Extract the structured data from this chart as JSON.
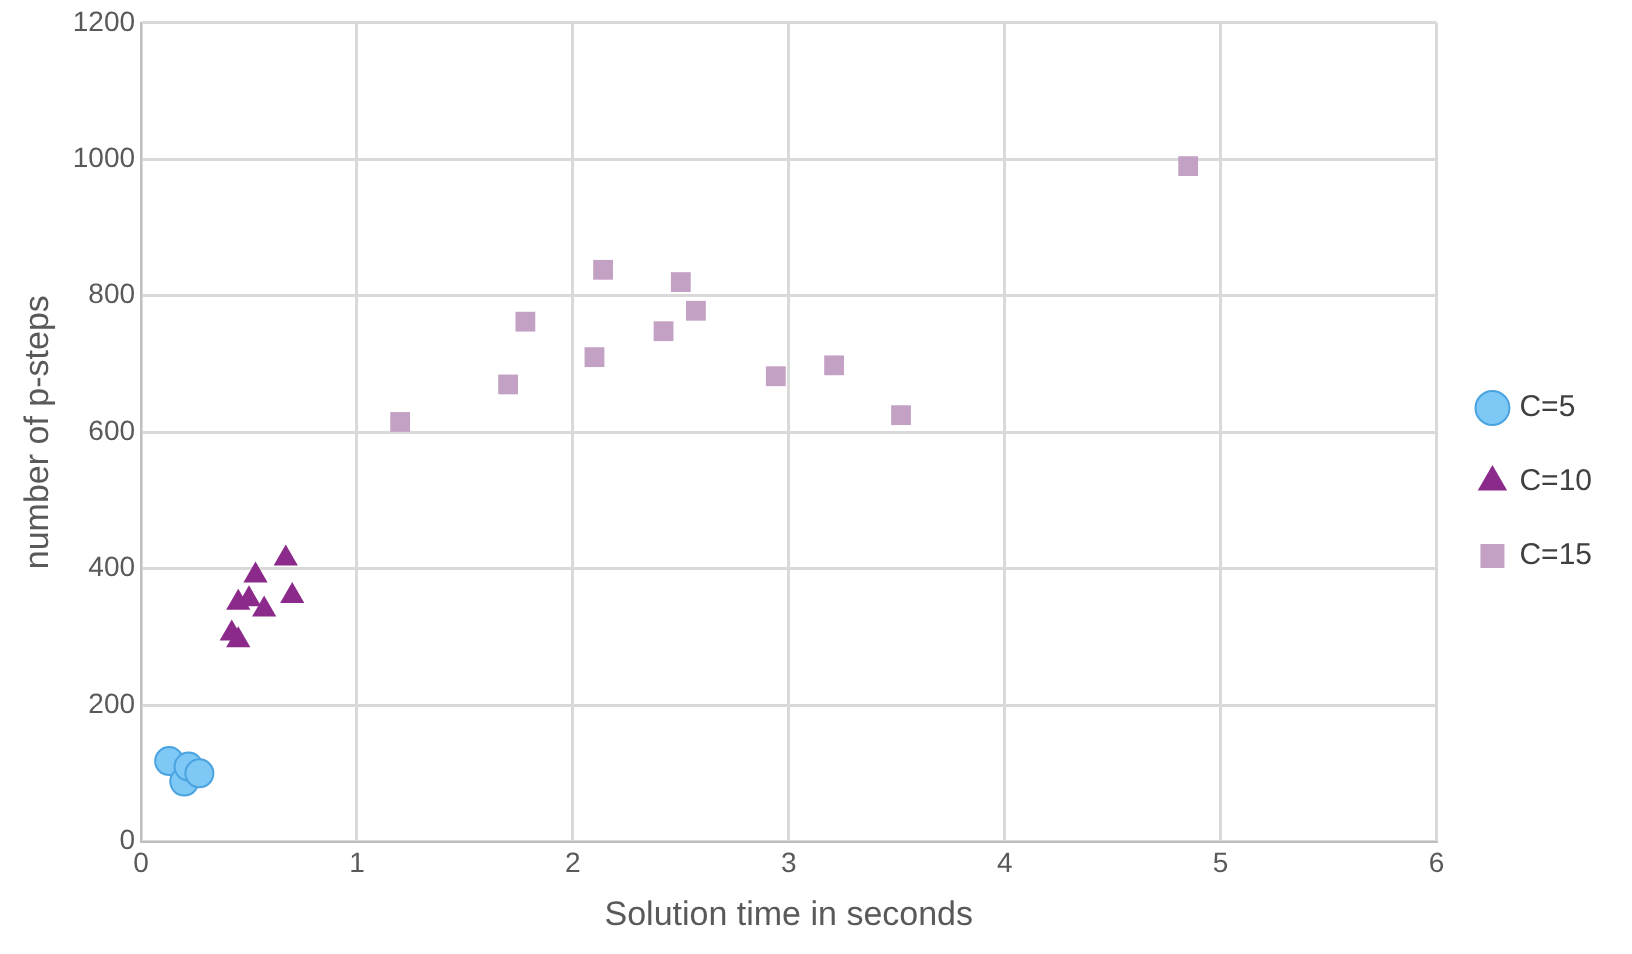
{
  "chart_data": {
    "type": "scatter",
    "xlabel": "Solution time in seconds",
    "ylabel": "number of p-steps",
    "xlim": [
      0,
      6
    ],
    "xticks": [
      0,
      1,
      2,
      3,
      4,
      5,
      6
    ],
    "ylim": [
      0,
      1200
    ],
    "yticks": [
      0,
      200,
      400,
      600,
      800,
      1000,
      1200
    ],
    "grid": true,
    "legend": "right",
    "series": [
      {
        "name": "C=5",
        "color": "#7ec8f5",
        "marker": "circle",
        "x": [
          0.13,
          0.2,
          0.22,
          0.27
        ],
        "values": [
          118,
          88,
          110,
          100
        ]
      },
      {
        "name": "C=10",
        "color": "#8b2a8a",
        "marker": "triangle",
        "x": [
          0.42,
          0.45,
          0.45,
          0.5,
          0.53,
          0.57,
          0.67,
          0.7
        ],
        "values": [
          305,
          295,
          350,
          355,
          390,
          340,
          415,
          360
        ]
      },
      {
        "name": "C=15",
        "color": "#c3a1c5",
        "marker": "square",
        "x": [
          1.2,
          1.7,
          1.78,
          2.1,
          2.14,
          2.42,
          2.5,
          2.57,
          2.94,
          3.21,
          3.52,
          4.85
        ],
        "values": [
          615,
          670,
          762,
          710,
          838,
          748,
          820,
          778,
          682,
          698,
          625,
          990
        ]
      }
    ]
  }
}
